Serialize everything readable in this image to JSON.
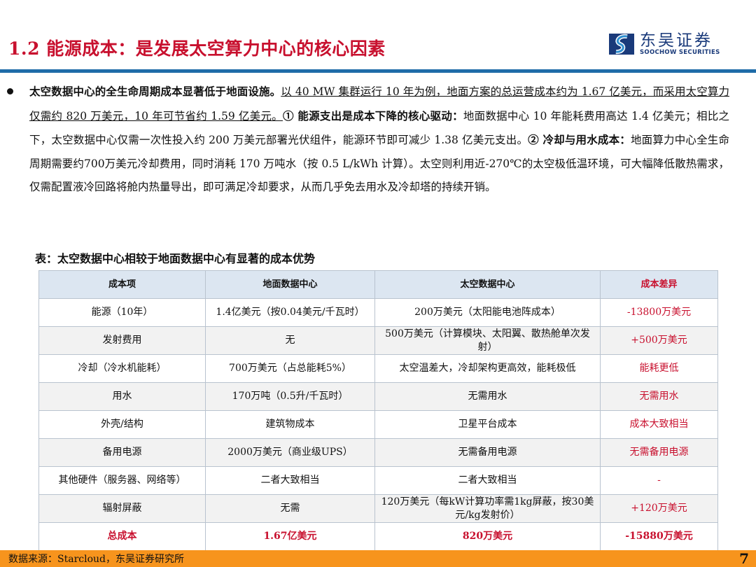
{
  "header": {
    "title": "1.2 能源成本：是发展太空算力中心的核心因素",
    "logo_cn": "东吴证券",
    "logo_en": "SOOCHOW SECURITIES"
  },
  "body": {
    "p1_bold": "太空数据中心的全生命周期成本显著低于地面设施。",
    "p1_underline": "以 40 MW 集群运行 10 年为例，地面方案的总运营成本约为 1.67 亿美元，而采用太空算力仅需约 820 万美元，10 年可节省约 1.59 亿美元。",
    "p2_bold": "① 能源支出是成本下降的核心驱动：",
    "p2_text": "地面数据中心 10 年能耗费用高达 1.4 亿美元；相比之下，太空数据中心仅需一次性投入约 200 万美元部署光伏组件，能源环节即可减少 1.38 亿美元支出。",
    "p3_bold": "② 冷却与用水成本：",
    "p3_text": "地面算力中心全生命周期需要约700万美元冷却费用，同时消耗 170 万吨水（按 0.5 L/kWh 计算）。太空则利用近-270℃的太空极低温环境，可大幅降低散热需求，仅需配置液冷回路将舱内热量导出，即可满足冷却要求，从而几乎免去用水及冷却塔的持续开销。"
  },
  "table": {
    "caption": "表：太空数据中心相较于地面数据中心有显著的成本优势",
    "headers": [
      "成本项",
      "地面数据中心",
      "太空数据中心",
      "成本差异"
    ],
    "rows": [
      [
        "能源（10年）",
        "1.4亿美元（按0.04美元/千瓦时）",
        "200万美元（太阳能电池阵成本）",
        "-13800万美元"
      ],
      [
        "发射费用",
        "无",
        "500万美元（计算模块、太阳翼、散热舱单次发射）",
        "+500万美元"
      ],
      [
        "冷却（冷水机能耗）",
        "700万美元（占总能耗5%）",
        "太空温差大，冷却架构更高效，能耗极低",
        "能耗更低"
      ],
      [
        "用水",
        "170万吨（0.5升/千瓦时）",
        "无需用水",
        "无需用水"
      ],
      [
        "外壳/结构",
        "建筑物成本",
        "卫星平台成本",
        "成本大致相当"
      ],
      [
        "备用电源",
        "2000万美元（商业级UPS）",
        "无需备用电源",
        "无需备用电源"
      ],
      [
        "其他硬件（服务器、网络等）",
        "二者大致相当",
        "二者大致相当",
        "-"
      ],
      [
        "辐射屏蔽",
        "无需",
        "120万美元（每kW计算功率需1kg屏蔽，按30美元/kg发射价）",
        "+120万美元"
      ],
      [
        "总成本",
        "1.67亿美元",
        "820万美元",
        "-15880万美元"
      ]
    ]
  },
  "footer": {
    "source": "数据来源：Starcloud，东吴证券研究所",
    "page": "7"
  },
  "colors": {
    "title": "#c8102e",
    "rule": "#1f6ca8",
    "footer": "#f7941d",
    "header_bg": "#dce6f1"
  }
}
